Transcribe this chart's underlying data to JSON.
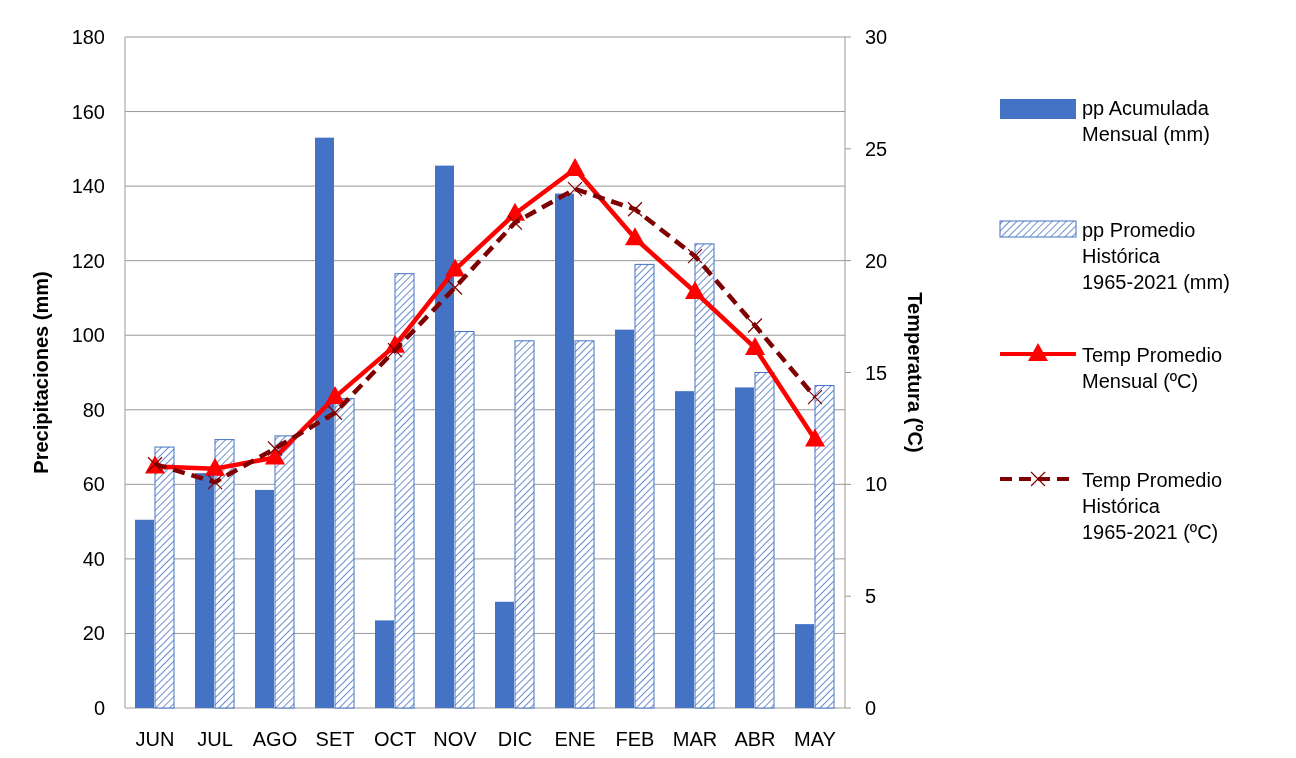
{
  "chart_data": {
    "type": "bar",
    "ylabel": "Precipitaciones (mm)",
    "y2label": "Temperatura (ºC)",
    "categories": [
      "JUN",
      "JUL",
      "AGO",
      "SET",
      "OCT",
      "NOV",
      "DIC",
      "ENE",
      "FEB",
      "MAR",
      "ABR",
      "MAY"
    ],
    "series": [
      {
        "name": "pp Acumulada Mensual (mm)",
        "color": "#4472c4",
        "values": [
          50.5,
          63,
          58.5,
          153,
          23.5,
          145.5,
          28.5,
          138,
          101.5,
          85,
          86,
          22.5
        ]
      },
      {
        "name": "pp Promedio Histórica 1965-2021 (mm)",
        "color": "#4472c4",
        "values": [
          70,
          72,
          73,
          83,
          116.5,
          101,
          98.5,
          98.5,
          119,
          124.5,
          90,
          86.5
        ]
      },
      {
        "name": "Temp Promedio Mensual (ºC)",
        "type": "line",
        "axis": "y2",
        "color": "#ff0000",
        "marker": "triangle",
        "line_style": "solid",
        "values": [
          10.8,
          10.7,
          11.2,
          13.9,
          16.2,
          19.6,
          22.1,
          24.1,
          21.0,
          18.6,
          16.1,
          12.0
        ]
      },
      {
        "name": "Temp Promedio Histórica 1965-2021 (ºC)",
        "type": "line",
        "axis": "y2",
        "color": "#7f0000",
        "marker": "cross",
        "line_style": "dashed",
        "values": [
          10.9,
          10.1,
          11.6,
          13.2,
          16.0,
          18.8,
          21.7,
          23.2,
          22.3,
          20.2,
          17.1,
          13.9
        ]
      }
    ],
    "ylim": [
      0,
      180
    ],
    "yticks": [
      0,
      20,
      40,
      60,
      80,
      100,
      120,
      140,
      160,
      180
    ],
    "y2lim": [
      0,
      30
    ],
    "y2ticks": [
      0,
      5,
      10,
      15,
      20,
      25,
      30
    ],
    "grid": "y",
    "legend": "right"
  }
}
